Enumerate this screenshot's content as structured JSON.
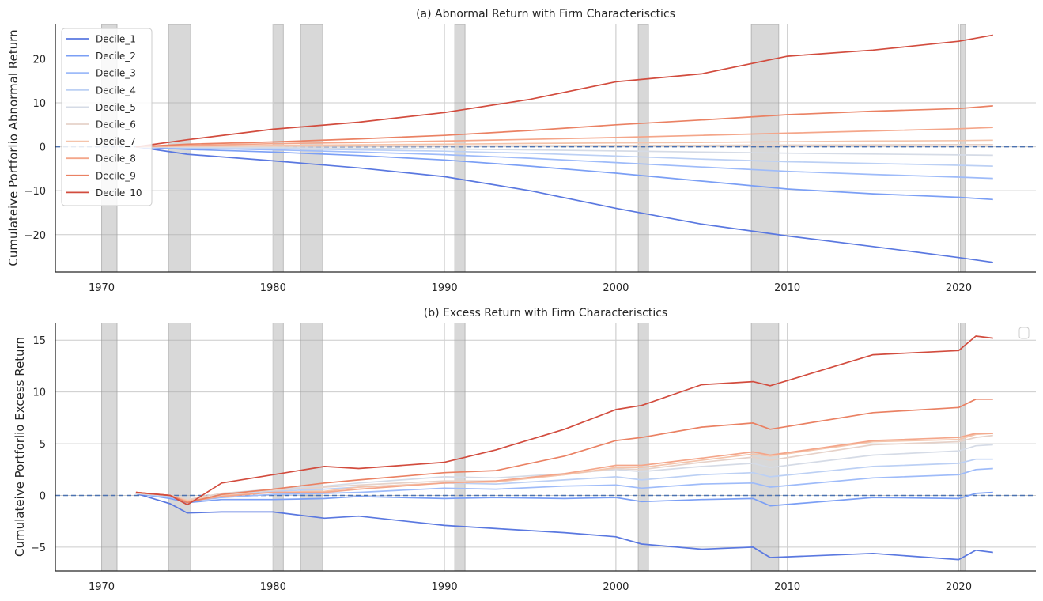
{
  "chart_data": [
    {
      "type": "line",
      "title": "(a) Abnormal Return with Firm Characterisctics",
      "xlabel": "",
      "ylabel": "Cumulateive Portforlio Abnormal Return",
      "xlim": [
        1967.3,
        2024.5
      ],
      "ylim": [
        -28.5,
        28
      ],
      "xticks": [
        1970,
        1980,
        1990,
        2000,
        2010,
        2020
      ],
      "xtick_labels": [
        "1970",
        "1980",
        "1990",
        "2000",
        "2010",
        "2020"
      ],
      "yticks": [
        -20,
        -10,
        0,
        10,
        20
      ],
      "ytick_labels": [
        "−20",
        "−10",
        "0",
        "10",
        "20"
      ],
      "grid": true,
      "zero_line": {
        "y": 0,
        "style": "dashed",
        "color": "#4c72b0"
      },
      "legend": {
        "placement": "upper-left"
      },
      "series": [
        {
          "name": "Decile_1",
          "color": "#5a78e0",
          "x": [
            1972,
            1975,
            1980,
            1985,
            1990,
            1995,
            2000,
            2005,
            2010,
            2015,
            2020,
            2022
          ],
          "values": [
            0,
            -1.7,
            -3.2,
            -4.8,
            -6.8,
            -10,
            -14,
            -17.6,
            -20.3,
            -22.7,
            -25.2,
            -26.3
          ]
        },
        {
          "name": "Decile_2",
          "color": "#7b9ff5",
          "x": [
            1972,
            1975,
            1980,
            1985,
            1990,
            1995,
            2000,
            2005,
            2010,
            2015,
            2020,
            2022
          ],
          "values": [
            0,
            -0.6,
            -1.2,
            -2,
            -3,
            -4.4,
            -6,
            -7.8,
            -9.6,
            -10.7,
            -11.5,
            -12
          ]
        },
        {
          "name": "Decile_3",
          "color": "#9ebbf9",
          "x": [
            1972,
            1975,
            1980,
            1985,
            1990,
            1995,
            2000,
            2005,
            2010,
            2015,
            2020,
            2022
          ],
          "values": [
            0,
            -0.3,
            -0.7,
            -1.2,
            -1.8,
            -2.6,
            -3.6,
            -4.6,
            -5.6,
            -6.3,
            -6.9,
            -7.2
          ]
        },
        {
          "name": "Decile_4",
          "color": "#bcd0f4",
          "x": [
            1972,
            1975,
            1980,
            1985,
            1990,
            1995,
            2000,
            2005,
            2010,
            2015,
            2020,
            2022
          ],
          "values": [
            0,
            -0.2,
            -0.4,
            -0.7,
            -1,
            -1.5,
            -2.1,
            -2.8,
            -3.4,
            -3.8,
            -4.2,
            -4.4
          ]
        },
        {
          "name": "Decile_5",
          "color": "#d5dbe6",
          "x": [
            1972,
            1975,
            1980,
            1985,
            1990,
            1995,
            2000,
            2005,
            2010,
            2015,
            2020,
            2022
          ],
          "values": [
            0,
            -0.1,
            -0.2,
            -0.35,
            -0.5,
            -0.7,
            -0.95,
            -1.2,
            -1.45,
            -1.65,
            -1.85,
            -1.95
          ]
        },
        {
          "name": "Decile_6",
          "color": "#e6d2c9",
          "x": [
            1972,
            1975,
            1980,
            1985,
            1990,
            1995,
            2000,
            2005,
            2010,
            2015,
            2020,
            2022
          ],
          "values": [
            0,
            0.05,
            0.1,
            0.15,
            0.2,
            0.25,
            0.3,
            0.35,
            0.4,
            0.45,
            0.5,
            0.5
          ]
        },
        {
          "name": "Decile_7",
          "color": "#f4c4ab",
          "x": [
            1972,
            1975,
            1980,
            1985,
            1990,
            1995,
            2000,
            2005,
            2010,
            2015,
            2020,
            2022
          ],
          "values": [
            0,
            0.15,
            0.3,
            0.45,
            0.6,
            0.75,
            0.9,
            1,
            1.15,
            1.3,
            1.4,
            1.5
          ]
        },
        {
          "name": "Decile_8",
          "color": "#f4a68a",
          "x": [
            1972,
            1975,
            1980,
            1985,
            1990,
            1995,
            2000,
            2005,
            2010,
            2015,
            2020,
            2022
          ],
          "values": [
            0,
            0.3,
            0.7,
            1,
            1.3,
            1.7,
            2.1,
            2.6,
            3.1,
            3.6,
            4.1,
            4.4
          ]
        },
        {
          "name": "Decile_9",
          "color": "#ea8163",
          "x": [
            1972,
            1975,
            1980,
            1985,
            1990,
            1995,
            2000,
            2005,
            2010,
            2015,
            2020,
            2022
          ],
          "values": [
            0,
            0.6,
            1.1,
            1.8,
            2.6,
            3.7,
            5,
            6.1,
            7.3,
            8.1,
            8.7,
            9.3
          ]
        },
        {
          "name": "Decile_10",
          "color": "#d24c3e",
          "x": [
            1972,
            1975,
            1980,
            1985,
            1990,
            1995,
            2000,
            2005,
            2010,
            2015,
            2020,
            2022
          ],
          "values": [
            0,
            1.6,
            4,
            5.6,
            7.8,
            10.8,
            14.8,
            16.6,
            20.6,
            22,
            24,
            25.4
          ]
        }
      ]
    },
    {
      "type": "line",
      "title": "(b) Excess Return with Firm Characterisctics",
      "xlabel": "",
      "ylabel": "Cumulateive Portforlio Excess Return",
      "xlim": [
        1967.3,
        2024.5
      ],
      "ylim": [
        -7.3,
        16.7
      ],
      "xticks": [
        1970,
        1980,
        1990,
        2000,
        2010,
        2020
      ],
      "xtick_labels": [
        "1970",
        "1980",
        "1990",
        "2000",
        "2010",
        "2020"
      ],
      "yticks": [
        -5,
        0,
        5,
        10,
        15
      ],
      "ytick_labels": [
        "−5",
        "0",
        "5",
        "10",
        "15"
      ],
      "grid": true,
      "zero_line": {
        "y": 0,
        "style": "dashed",
        "color": "#4c72b0"
      },
      "legend": {
        "placement": "upper-right",
        "entries": []
      },
      "series": [
        {
          "name": "Decile_1",
          "color": "#5a78e0",
          "x": [
            1972,
            1974,
            1975,
            1977,
            1980,
            1983,
            1985,
            1990,
            1993,
            1997,
            2000,
            2001.5,
            2005,
            2008,
            2009,
            2015,
            2020,
            2021,
            2022
          ],
          "values": [
            0.2,
            -0.8,
            -1.7,
            -1.6,
            -1.6,
            -2.2,
            -2,
            -2.9,
            -3.2,
            -3.6,
            -4,
            -4.7,
            -5.2,
            -5,
            -6,
            -5.6,
            -6.2,
            -5.3,
            -5.5
          ]
        },
        {
          "name": "Decile_2",
          "color": "#7b9ff5",
          "x": [
            1972,
            1974,
            1975,
            1977,
            1980,
            1983,
            1985,
            1990,
            1993,
            1997,
            2000,
            2001.5,
            2005,
            2008,
            2009,
            2015,
            2020,
            2021,
            2022
          ],
          "values": [
            0.2,
            -0.3,
            -0.7,
            -0.4,
            -0.4,
            -0.3,
            -0.1,
            -0.3,
            -0.2,
            -0.3,
            -0.2,
            -0.6,
            -0.4,
            -0.3,
            -1,
            -0.2,
            -0.3,
            0.2,
            0.3
          ]
        },
        {
          "name": "Decile_3",
          "color": "#9ebbf9",
          "x": [
            1972,
            1974,
            1975,
            1977,
            1980,
            1983,
            1985,
            1990,
            1993,
            1997,
            2000,
            2001.5,
            2005,
            2008,
            2009,
            2015,
            2020,
            2021,
            2022
          ],
          "values": [
            0.2,
            -0.2,
            -0.6,
            -0.2,
            0.1,
            0.2,
            0.3,
            0.7,
            0.6,
            0.9,
            1,
            0.7,
            1.1,
            1.2,
            0.8,
            1.7,
            2,
            2.5,
            2.6
          ]
        },
        {
          "name": "Decile_4",
          "color": "#bcd0f4",
          "x": [
            1972,
            1974,
            1975,
            1977,
            1980,
            1983,
            1985,
            1990,
            1993,
            1997,
            2000,
            2001.5,
            2005,
            2008,
            2009,
            2015,
            2020,
            2021,
            2022
          ],
          "values": [
            0.2,
            -0.1,
            -0.5,
            0,
            0.4,
            0.6,
            0.8,
            1.2,
            1.1,
            1.5,
            1.8,
            1.5,
            2,
            2.2,
            1.8,
            2.8,
            3.1,
            3.5,
            3.5
          ]
        },
        {
          "name": "Decile_5",
          "color": "#d5dbe6",
          "x": [
            1972,
            1974,
            1975,
            1977,
            1980,
            1983,
            1985,
            1990,
            1993,
            1997,
            2000,
            2001.5,
            2005,
            2008,
            2009,
            2015,
            2020,
            2021,
            2022
          ],
          "values": [
            0.2,
            0,
            -0.4,
            0.2,
            0.6,
            0.9,
            1.2,
            1.8,
            1.7,
            2.1,
            2.5,
            2.3,
            2.8,
            3.1,
            2.7,
            3.9,
            4.3,
            4.8,
            4.9
          ]
        },
        {
          "name": "Decile_6",
          "color": "#e6d2c9",
          "x": [
            1972,
            1974,
            1975,
            1977,
            1980,
            1983,
            1985,
            1990,
            1993,
            1997,
            2000,
            2001.5,
            2005,
            2008,
            2009,
            2015,
            2020,
            2021,
            2022
          ],
          "values": [
            0.2,
            0,
            -0.4,
            0.2,
            0.5,
            0.8,
            1,
            1.4,
            1.4,
            2,
            2.6,
            2.5,
            3.2,
            3.7,
            3.4,
            4.9,
            5.2,
            5.6,
            5.8
          ]
        },
        {
          "name": "Decile_7",
          "color": "#f4c4ab",
          "x": [
            1972,
            1974,
            1975,
            1977,
            1980,
            1983,
            1985,
            1990,
            1993,
            1997,
            2000,
            2001.5,
            2005,
            2008,
            2009,
            2015,
            2020,
            2021,
            2022
          ],
          "values": [
            0.3,
            0,
            -0.5,
            0,
            0.3,
            0.4,
            0.8,
            1.2,
            1.3,
            2,
            2.7,
            2.7,
            3.4,
            4,
            3.8,
            5.2,
            5.4,
            5.9,
            6
          ]
        },
        {
          "name": "Decile_8",
          "color": "#f4a68a",
          "x": [
            1972,
            1974,
            1975,
            1977,
            1980,
            1983,
            1985,
            1990,
            1993,
            1997,
            2000,
            2001.5,
            2005,
            2008,
            2009,
            2015,
            2020,
            2021,
            2022
          ],
          "values": [
            0.3,
            0,
            -0.6,
            -0.1,
            0.3,
            0.3,
            0.6,
            1.2,
            1.4,
            2.1,
            2.9,
            2.9,
            3.6,
            4.2,
            3.9,
            5.3,
            5.6,
            6,
            6
          ]
        },
        {
          "name": "Decile_9",
          "color": "#ea8163",
          "x": [
            1972,
            1974,
            1975,
            1977,
            1980,
            1983,
            1985,
            1990,
            1993,
            1997,
            2000,
            2001.5,
            2005,
            2008,
            2009,
            2015,
            2020,
            2021,
            2022
          ],
          "values": [
            0.3,
            0,
            -0.7,
            0.1,
            0.6,
            1.2,
            1.5,
            2.2,
            2.4,
            3.8,
            5.3,
            5.6,
            6.6,
            7,
            6.4,
            8,
            8.5,
            9.3,
            9.3
          ]
        },
        {
          "name": "Decile_10",
          "color": "#d24c3e",
          "x": [
            1972,
            1974,
            1975,
            1977,
            1980,
            1983,
            1985,
            1990,
            1993,
            1997,
            2000,
            2001.5,
            2005,
            2008,
            2009,
            2015,
            2020,
            2021,
            2022
          ],
          "values": [
            0.3,
            0,
            -0.9,
            1.2,
            2,
            2.8,
            2.6,
            3.2,
            4.4,
            6.4,
            8.3,
            8.7,
            10.7,
            11,
            10.6,
            13.6,
            14,
            15.4,
            15.2
          ]
        }
      ]
    }
  ],
  "recession_bands": [
    [
      1970,
      1970.9
    ],
    [
      1973.9,
      1975.2
    ],
    [
      1980,
      1980.6
    ],
    [
      1981.6,
      1982.9
    ],
    [
      1990.6,
      1991.2
    ],
    [
      2001.3,
      2001.9
    ],
    [
      2007.9,
      2009.5
    ],
    [
      2020.1,
      2020.4
    ]
  ],
  "vertical_lines": [
    1980,
    1990,
    2000,
    2010,
    2020
  ]
}
